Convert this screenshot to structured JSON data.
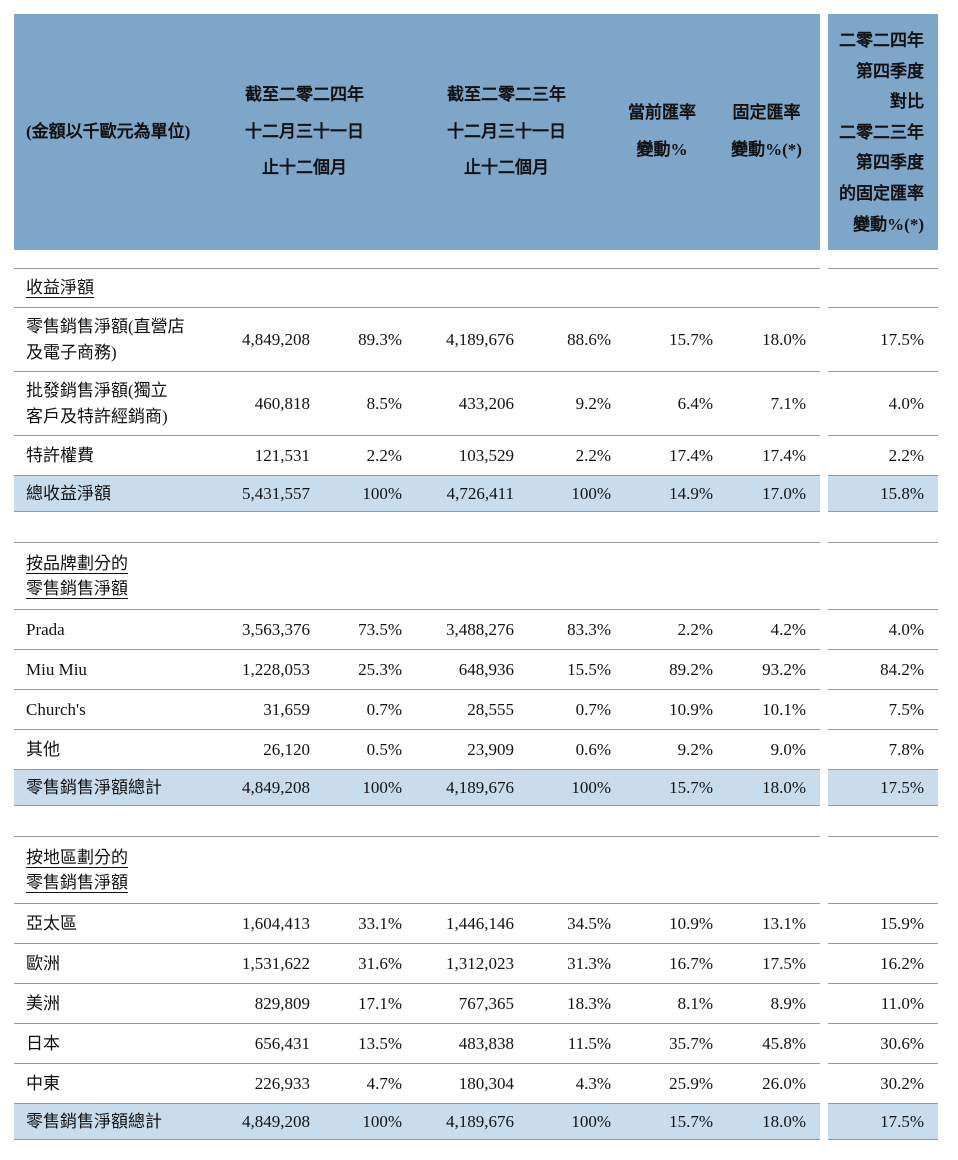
{
  "colors": {
    "page-bg": "#ffffff",
    "header-bg": "#7da6c9",
    "highlight-bg": "#c9dcec",
    "line": "#999999",
    "text": "#111111"
  },
  "header": {
    "unit_label": "(金額以千歐元為單位)",
    "col_2024": "截至二零二四年\n十二月三十一日\n止十二個月",
    "col_2023": "截至二零二三年\n十二月三十一日\n止十二個月",
    "col_current": "當前匯率\n變動%",
    "col_fixed": "固定匯率\n變動%(*)",
    "col_q4": "二零二四年\n第四季度\n對比\n二零二三年\n第四季度\n的固定匯率\n變動%(*)"
  },
  "sections": [
    {
      "title": "收益淨額",
      "rows": [
        {
          "label": "零售銷售淨額(直營店\n及電子商務)",
          "v24": "4,849,208",
          "p24": "89.3%",
          "v23": "4,189,676",
          "p23": "88.6%",
          "cur": "15.7%",
          "fix": "18.0%",
          "q4": "17.5%"
        },
        {
          "label": "批發銷售淨額(獨立\n客戶及特許經銷商)",
          "v24": "460,818",
          "p24": "8.5%",
          "v23": "433,206",
          "p23": "9.2%",
          "cur": "6.4%",
          "fix": "7.1%",
          "q4": "4.0%"
        },
        {
          "label": "特許權費",
          "v24": "121,531",
          "p24": "2.2%",
          "v23": "103,529",
          "p23": "2.2%",
          "cur": "17.4%",
          "fix": "17.4%",
          "q4": "2.2%"
        }
      ],
      "total": {
        "label": "總收益淨額",
        "v24": "5,431,557",
        "p24": "100%",
        "v23": "4,726,411",
        "p23": "100%",
        "cur": "14.9%",
        "fix": "17.0%",
        "q4": "15.8%"
      }
    },
    {
      "title": "按品牌劃分的\n零售銷售淨額",
      "rows": [
        {
          "label": "Prada",
          "v24": "3,563,376",
          "p24": "73.5%",
          "v23": "3,488,276",
          "p23": "83.3%",
          "cur": "2.2%",
          "fix": "4.2%",
          "q4": "4.0%"
        },
        {
          "label": "Miu Miu",
          "v24": "1,228,053",
          "p24": "25.3%",
          "v23": "648,936",
          "p23": "15.5%",
          "cur": "89.2%",
          "fix": "93.2%",
          "q4": "84.2%"
        },
        {
          "label": "Church's",
          "v24": "31,659",
          "p24": "0.7%",
          "v23": "28,555",
          "p23": "0.7%",
          "cur": "10.9%",
          "fix": "10.1%",
          "q4": "7.5%"
        },
        {
          "label": "其他",
          "v24": "26,120",
          "p24": "0.5%",
          "v23": "23,909",
          "p23": "0.6%",
          "cur": "9.2%",
          "fix": "9.0%",
          "q4": "7.8%"
        }
      ],
      "total": {
        "label": "零售銷售淨額總計",
        "v24": "4,849,208",
        "p24": "100%",
        "v23": "4,189,676",
        "p23": "100%",
        "cur": "15.7%",
        "fix": "18.0%",
        "q4": "17.5%"
      }
    },
    {
      "title": "按地區劃分的\n零售銷售淨額",
      "rows": [
        {
          "label": "亞太區",
          "v24": "1,604,413",
          "p24": "33.1%",
          "v23": "1,446,146",
          "p23": "34.5%",
          "cur": "10.9%",
          "fix": "13.1%",
          "q4": "15.9%"
        },
        {
          "label": "歐洲",
          "v24": "1,531,622",
          "p24": "31.6%",
          "v23": "1,312,023",
          "p23": "31.3%",
          "cur": "16.7%",
          "fix": "17.5%",
          "q4": "16.2%"
        },
        {
          "label": "美洲",
          "v24": "829,809",
          "p24": "17.1%",
          "v23": "767,365",
          "p23": "18.3%",
          "cur": "8.1%",
          "fix": "8.9%",
          "q4": "11.0%"
        },
        {
          "label": "日本",
          "v24": "656,431",
          "p24": "13.5%",
          "v23": "483,838",
          "p23": "11.5%",
          "cur": "35.7%",
          "fix": "45.8%",
          "q4": "30.6%"
        },
        {
          "label": "中東",
          "v24": "226,933",
          "p24": "4.7%",
          "v23": "180,304",
          "p23": "4.3%",
          "cur": "25.9%",
          "fix": "26.0%",
          "q4": "30.2%"
        }
      ],
      "total": {
        "label": "零售銷售淨額總計",
        "v24": "4,849,208",
        "p24": "100%",
        "v23": "4,189,676",
        "p23": "100%",
        "cur": "15.7%",
        "fix": "18.0%",
        "q4": "17.5%"
      }
    }
  ]
}
